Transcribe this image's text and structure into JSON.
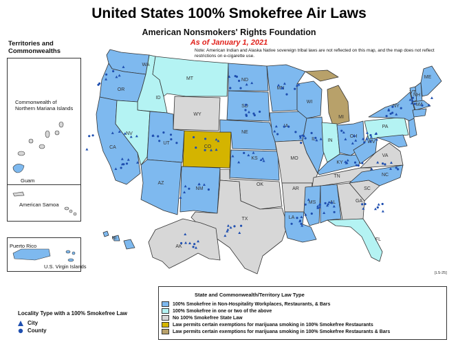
{
  "title": "United States 100% Smokefree Air Laws",
  "subtitle": "American Nonsmokers' Rights Foundation",
  "date_line": "As of January 1, 2021",
  "note": "Note: American Indian and Alaska Native sovereign tribal laws are not reflected on this map, and the map does not reflect restrictions on e-cigarette use.",
  "territories": {
    "heading": "Territories and Commonwealths",
    "items": [
      {
        "name": "Commonwealth of Northern Mariana Islands",
        "category": "none"
      },
      {
        "name": "Guam",
        "category": "nonhospitality"
      },
      {
        "name": "American Samoa",
        "category": "none"
      },
      {
        "name": "Puerto Rico",
        "category": "nonhospitality"
      },
      {
        "name": "U.S. Virgin Islands",
        "category": "nonhospitality"
      }
    ]
  },
  "code": "[LS-25]",
  "colors": {
    "nonhospitality": "#7eb9ef",
    "one_or_two": "#b4f3f3",
    "none": "#d7d7d7",
    "marijuana_workplaces": "#d4b400",
    "marijuana_bars": "#b8a16a",
    "marker": "#1f4fb0",
    "date_red": "#e0201a"
  },
  "legend": {
    "title": "State and Commonwealth/Territory Law Type",
    "items": [
      {
        "label": "100% Smokefree in Non-Hospitality Workplaces, Restaurants, & Bars",
        "color": "#7eb9ef"
      },
      {
        "label": "100% Smokefree in one or two of the above",
        "color": "#b4f3f3"
      },
      {
        "label": "No 100% Smokefree State Law",
        "color": "#d7d7d7"
      },
      {
        "label": "Law permits certain exemptions for marijuana smoking in 100% Smokefree Restaurants",
        "color": "#d4b400"
      },
      {
        "label": "Law permits certain exemptions for marijuana smoking in 100% Smokefree Restaurants & Bars",
        "color": "#b8a16a"
      }
    ]
  },
  "locality": {
    "title": "Locality Type with a 100% Smokefree Law",
    "items": [
      {
        "label": "City",
        "icon": "triangle-marker-icon"
      },
      {
        "label": "County",
        "icon": "circle-marker-icon"
      }
    ]
  },
  "state_labels": [
    "WA",
    "OR",
    "CA",
    "ID",
    "NV",
    "MT",
    "WY",
    "UT",
    "AZ",
    "CO",
    "NM",
    "ND",
    "SD",
    "NE",
    "KS",
    "OK",
    "TX",
    "MN",
    "IA",
    "MO",
    "AR",
    "LA",
    "WI",
    "IL",
    "MI",
    "IN",
    "OH",
    "KY",
    "TN",
    "MS",
    "AL",
    "GA",
    "FL",
    "SC",
    "NC",
    "VA",
    "WV",
    "PA",
    "NY",
    "VT",
    "NH",
    "ME",
    "MA",
    "AK",
    "HI"
  ]
}
